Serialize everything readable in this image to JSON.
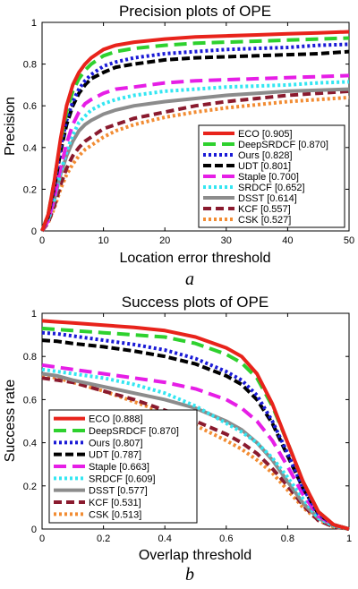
{
  "chart_data": [
    {
      "type": "line",
      "title": "Precision plots of OPE",
      "xlabel": "Location error threshold",
      "ylabel": "Precision",
      "xlim": [
        0,
        50
      ],
      "ylim": [
        0,
        1
      ],
      "xticks": [
        "0",
        "10",
        "20",
        "30",
        "40",
        "50"
      ],
      "yticks": [
        "0",
        "0.2",
        "0.4",
        "0.6",
        "0.8",
        "1"
      ],
      "caption": "a",
      "legend_position": "bottom-right",
      "x": [
        0,
        1,
        2,
        3,
        4,
        5,
        6,
        7,
        8,
        10,
        12,
        15,
        20,
        25,
        30,
        35,
        40,
        45,
        50
      ],
      "series": [
        {
          "name": "ECO",
          "score": "[0.905]",
          "color": "#e8231b",
          "dash": "",
          "width": 4,
          "values": [
            0,
            0.08,
            0.24,
            0.44,
            0.6,
            0.7,
            0.76,
            0.8,
            0.83,
            0.87,
            0.89,
            0.905,
            0.92,
            0.93,
            0.935,
            0.94,
            0.945,
            0.95,
            0.955
          ]
        },
        {
          "name": "DeepSRDCF",
          "score": "[0.870]",
          "color": "#2ed12e",
          "dash": "14,7",
          "width": 4,
          "values": [
            0,
            0.08,
            0.24,
            0.43,
            0.57,
            0.67,
            0.73,
            0.77,
            0.8,
            0.84,
            0.86,
            0.875,
            0.89,
            0.9,
            0.905,
            0.91,
            0.915,
            0.92,
            0.925
          ]
        },
        {
          "name": "Ours",
          "score": "[0.828]",
          "color": "#1a1ad6",
          "dash": "3,3",
          "width": 4,
          "values": [
            0,
            0.07,
            0.22,
            0.4,
            0.53,
            0.62,
            0.68,
            0.72,
            0.75,
            0.79,
            0.81,
            0.83,
            0.85,
            0.86,
            0.87,
            0.875,
            0.88,
            0.89,
            0.895
          ]
        },
        {
          "name": "UDT",
          "score": "[0.801]",
          "color": "#000000",
          "dash": "9,4",
          "width": 4,
          "values": [
            0,
            0.07,
            0.21,
            0.38,
            0.51,
            0.6,
            0.66,
            0.7,
            0.73,
            0.76,
            0.785,
            0.8,
            0.82,
            0.83,
            0.835,
            0.84,
            0.845,
            0.85,
            0.86
          ]
        },
        {
          "name": "Staple",
          "score": "[0.700]",
          "color": "#e61ee6",
          "dash": "14,7",
          "width": 4,
          "values": [
            0,
            0.05,
            0.16,
            0.3,
            0.42,
            0.51,
            0.57,
            0.61,
            0.63,
            0.66,
            0.68,
            0.69,
            0.71,
            0.72,
            0.725,
            0.73,
            0.735,
            0.74,
            0.745
          ]
        },
        {
          "name": "SRDCF",
          "score": "[0.652]",
          "color": "#33e6f2",
          "dash": "3,3",
          "width": 4,
          "values": [
            0,
            0.05,
            0.15,
            0.28,
            0.38,
            0.46,
            0.52,
            0.55,
            0.58,
            0.61,
            0.63,
            0.65,
            0.67,
            0.68,
            0.69,
            0.695,
            0.7,
            0.71,
            0.715
          ]
        },
        {
          "name": "DSST",
          "score": "[0.614]",
          "color": "#8c8c8c",
          "dash": "",
          "width": 4,
          "values": [
            0,
            0.05,
            0.15,
            0.27,
            0.36,
            0.43,
            0.48,
            0.51,
            0.53,
            0.56,
            0.58,
            0.6,
            0.62,
            0.635,
            0.65,
            0.66,
            0.67,
            0.675,
            0.68
          ]
        },
        {
          "name": "KCF",
          "score": "[0.557]",
          "color": "#8a1a2e",
          "dash": "9,5",
          "width": 4,
          "values": [
            0,
            0.04,
            0.12,
            0.22,
            0.3,
            0.36,
            0.4,
            0.43,
            0.45,
            0.49,
            0.51,
            0.54,
            0.57,
            0.6,
            0.62,
            0.635,
            0.65,
            0.66,
            0.67
          ]
        },
        {
          "name": "CSK",
          "score": "[0.527]",
          "color": "#f28c33",
          "dash": "3,3",
          "width": 4,
          "values": [
            0,
            0.04,
            0.11,
            0.2,
            0.27,
            0.32,
            0.36,
            0.39,
            0.41,
            0.45,
            0.48,
            0.51,
            0.545,
            0.57,
            0.59,
            0.605,
            0.62,
            0.63,
            0.64
          ]
        }
      ]
    },
    {
      "type": "line",
      "title": "Success plots of OPE",
      "xlabel": "Overlap threshold",
      "ylabel": "Success rate",
      "xlim": [
        0,
        1
      ],
      "ylim": [
        0,
        1
      ],
      "xticks": [
        "0",
        "0.2",
        "0.4",
        "0.6",
        "0.8",
        "1"
      ],
      "yticks": [
        "0",
        "0.2",
        "0.4",
        "0.6",
        "0.8",
        "1"
      ],
      "caption": "b",
      "legend_position": "bottom-left",
      "x": [
        0,
        0.05,
        0.1,
        0.2,
        0.3,
        0.4,
        0.5,
        0.6,
        0.65,
        0.7,
        0.75,
        0.8,
        0.85,
        0.9,
        0.95,
        1
      ],
      "series": [
        {
          "name": "ECO",
          "score": "[0.888]",
          "color": "#e8231b",
          "dash": "",
          "width": 4,
          "values": [
            0.965,
            0.96,
            0.955,
            0.945,
            0.935,
            0.92,
            0.89,
            0.84,
            0.8,
            0.72,
            0.58,
            0.4,
            0.22,
            0.08,
            0.02,
            0
          ]
        },
        {
          "name": "DeepSRDCF",
          "score": "[0.870]",
          "color": "#2ed12e",
          "dash": "14,7",
          "width": 4,
          "values": [
            0.93,
            0.925,
            0.92,
            0.91,
            0.9,
            0.89,
            0.86,
            0.81,
            0.77,
            0.7,
            0.57,
            0.4,
            0.22,
            0.08,
            0.02,
            0
          ]
        },
        {
          "name": "Ours",
          "score": "[0.807]",
          "color": "#1a1ad6",
          "dash": "3,3",
          "width": 4,
          "values": [
            0.91,
            0.905,
            0.895,
            0.875,
            0.855,
            0.83,
            0.79,
            0.73,
            0.69,
            0.62,
            0.5,
            0.35,
            0.19,
            0.07,
            0.02,
            0
          ]
        },
        {
          "name": "UDT",
          "score": "[0.787]",
          "color": "#000000",
          "dash": "9,4",
          "width": 4,
          "values": [
            0.875,
            0.87,
            0.86,
            0.845,
            0.825,
            0.8,
            0.765,
            0.71,
            0.67,
            0.6,
            0.49,
            0.34,
            0.19,
            0.07,
            0.02,
            0
          ]
        },
        {
          "name": "Staple",
          "score": "[0.663]",
          "color": "#e61ee6",
          "dash": "14,7",
          "width": 4,
          "values": [
            0.76,
            0.75,
            0.74,
            0.72,
            0.7,
            0.68,
            0.65,
            0.6,
            0.56,
            0.5,
            0.41,
            0.29,
            0.16,
            0.06,
            0.02,
            0
          ]
        },
        {
          "name": "SRDCF",
          "score": "[0.609]",
          "color": "#33e6f2",
          "dash": "3,3",
          "width": 4,
          "values": [
            0.74,
            0.73,
            0.72,
            0.7,
            0.67,
            0.63,
            0.57,
            0.49,
            0.45,
            0.4,
            0.33,
            0.24,
            0.14,
            0.05,
            0.015,
            0
          ]
        },
        {
          "name": "DSST",
          "score": "[0.577]",
          "color": "#8c8c8c",
          "dash": "",
          "width": 4,
          "values": [
            0.72,
            0.71,
            0.69,
            0.66,
            0.63,
            0.6,
            0.56,
            0.5,
            0.46,
            0.4,
            0.32,
            0.22,
            0.12,
            0.05,
            0.015,
            0
          ]
        },
        {
          "name": "KCF",
          "score": "[0.531]",
          "color": "#8a1a2e",
          "dash": "9,5",
          "width": 4,
          "values": [
            0.7,
            0.69,
            0.68,
            0.64,
            0.6,
            0.55,
            0.5,
            0.44,
            0.4,
            0.35,
            0.28,
            0.2,
            0.11,
            0.04,
            0.01,
            0
          ]
        },
        {
          "name": "CSK",
          "score": "[0.513]",
          "color": "#f28c33",
          "dash": "3,3",
          "width": 4,
          "values": [
            0.71,
            0.7,
            0.68,
            0.64,
            0.59,
            0.54,
            0.48,
            0.41,
            0.37,
            0.32,
            0.26,
            0.18,
            0.1,
            0.04,
            0.01,
            0
          ]
        }
      ]
    }
  ]
}
